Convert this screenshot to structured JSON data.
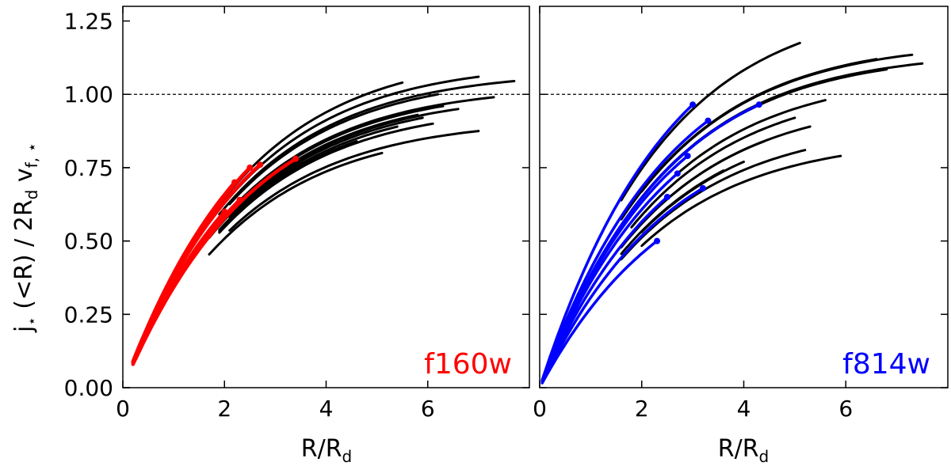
{
  "chart_data": [
    {
      "type": "line",
      "panel": "left",
      "band_label": "f160w",
      "band_color": "#ff0000",
      "xlabel": "R/R_d",
      "ylabel": "j⋆(<R) / 2R_d v_f,⋆",
      "xlim": [
        0,
        8
      ],
      "ylim": [
        0,
        1.3
      ],
      "xticks": [
        0,
        2,
        4,
        6
      ],
      "yticks": [
        0,
        0.25,
        0.5,
        0.75,
        1.0
      ],
      "reference_line_y": 1.0,
      "black_curves_rmax": [
        5.5,
        7.7,
        6.2,
        7.0,
        7.3,
        6.6,
        5.8,
        5.4,
        5.9,
        6.3,
        4.6,
        7.0,
        5.1,
        6.1
      ],
      "black_curves_ymax": [
        1.04,
        1.045,
        1.0,
        1.06,
        0.99,
        0.95,
        0.93,
        0.89,
        0.92,
        0.96,
        0.84,
        0.875,
        0.8,
        0.9
      ],
      "highlight_curves_rmax": [
        2.2,
        2.5,
        2.7,
        3.4,
        1.6,
        2.0,
        2.3
      ],
      "highlight_curves_ymax": [
        0.7,
        0.75,
        0.76,
        0.78,
        0.55,
        0.6,
        0.64
      ]
    },
    {
      "type": "line",
      "panel": "right",
      "band_label": "f814w",
      "band_color": "#0000ff",
      "xlabel": "R/R_d",
      "xlim": [
        0,
        8
      ],
      "ylim": [
        0,
        1.3
      ],
      "xticks": [
        0,
        2,
        4,
        6
      ],
      "yticks": [
        0,
        0.25,
        0.5,
        0.75,
        1.0
      ],
      "reference_line_y": 1.0,
      "black_curves_rmax": [
        5.1,
        7.5,
        7.3,
        6.6,
        6.8,
        5.6,
        5.3,
        5.0,
        5.9,
        5.2,
        4.4,
        4.0,
        3.6
      ],
      "black_curves_ymax": [
        1.175,
        1.105,
        1.135,
        1.12,
        1.085,
        0.98,
        0.89,
        0.92,
        0.79,
        0.81,
        0.84,
        0.77,
        0.74
      ],
      "highlight_curves_rmax": [
        3.0,
        3.3,
        4.3,
        2.9,
        2.3,
        3.2,
        2.7,
        2.5
      ],
      "highlight_curves_ymax": [
        0.965,
        0.91,
        0.965,
        0.79,
        0.5,
        0.68,
        0.73,
        0.65
      ]
    }
  ]
}
